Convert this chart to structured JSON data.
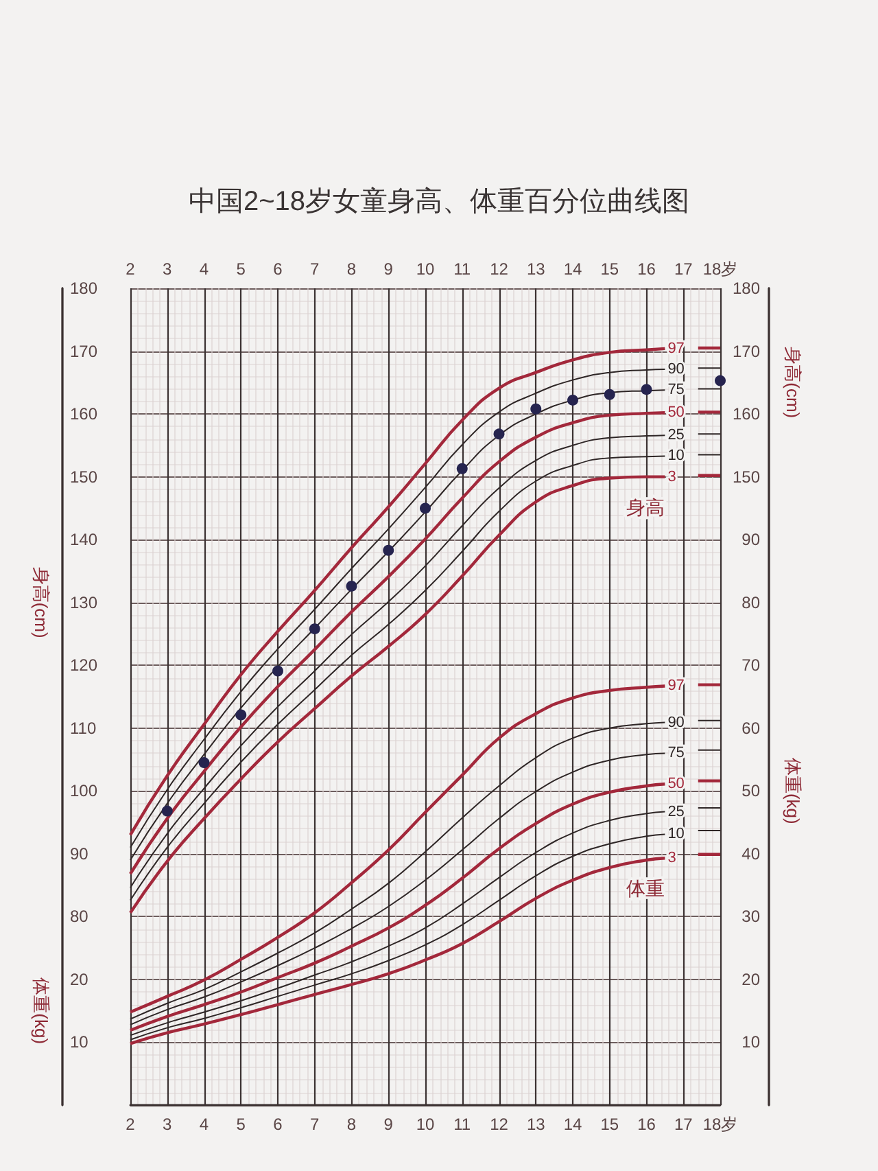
{
  "chart_data": [
    {
      "type": "line",
      "title": "中国2~18岁女童身高、体重百分位曲线图",
      "ylabel": "身高(cm)",
      "y2label": "身高(cm)",
      "xlim": [
        2,
        18
      ],
      "xticks": [
        2,
        3,
        4,
        5,
        6,
        7,
        8,
        9,
        10,
        11,
        12,
        13,
        14,
        15,
        16,
        17,
        {
          "value": 18,
          "label": "18岁"
        }
      ],
      "x2lim": [
        2,
        18
      ],
      "x2ticks": [
        2,
        3,
        4,
        5,
        6,
        7,
        8,
        9,
        10,
        11,
        12,
        13,
        14,
        15,
        16,
        17,
        {
          "value": 18,
          "label": "18岁"
        }
      ],
      "ylim": [
        50,
        180
      ],
      "yticks": [
        80,
        90,
        100,
        110,
        120,
        130,
        140,
        150,
        160,
        170,
        180
      ],
      "y2lim": [
        50,
        180
      ],
      "y2ticks": [
        150,
        160,
        170,
        180
      ],
      "grid": true,
      "series": [
        {
          "name": "97",
          "color": "#a3283b",
          "x": [
            2,
            3,
            4,
            5,
            6,
            7,
            8,
            9,
            10,
            11,
            12,
            13,
            14,
            15,
            16,
            16.5,
            17,
            17.4,
            18
          ],
          "values": [
            93.0,
            102.4,
            110.6,
            118.5,
            125.4,
            131.9,
            138.7,
            145.2,
            152.1,
            159.0,
            164.1,
            166.6,
            168.6,
            169.8,
            170.2,
            170.4,
            null,
            170.5,
            170.5
          ]
        },
        {
          "name": "90",
          "color": "#2e2626",
          "x": [
            2,
            3,
            4,
            5,
            6,
            7,
            8,
            9,
            10,
            11,
            12,
            13,
            14,
            15,
            16,
            16.5,
            17,
            17.4,
            18
          ],
          "values": [
            91.0,
            100.2,
            108.2,
            115.8,
            122.6,
            128.9,
            135.4,
            141.7,
            148.3,
            155.1,
            160.3,
            163.3,
            165.4,
            166.6,
            167.0,
            167.1,
            null,
            167.3,
            167.3
          ]
        },
        {
          "name": "75",
          "color": "#2e2626",
          "x": [
            2,
            3,
            4,
            5,
            6,
            7,
            8,
            9,
            10,
            11,
            12,
            13,
            14,
            15,
            16,
            16.5,
            17,
            17.4,
            18
          ],
          "values": [
            89.0,
            98.0,
            105.8,
            113.2,
            119.8,
            125.9,
            132.1,
            138.1,
            144.4,
            151.0,
            156.6,
            160.0,
            162.2,
            163.4,
            163.7,
            163.8,
            null,
            164.0,
            164.0
          ]
        },
        {
          "name": "50",
          "color": "#a3283b",
          "x": [
            2,
            3,
            4,
            5,
            6,
            7,
            8,
            9,
            10,
            11,
            12,
            13,
            14,
            15,
            16,
            16.5,
            17,
            17.4,
            18
          ],
          "values": [
            86.8,
            95.6,
            103.1,
            110.2,
            116.6,
            122.5,
            128.5,
            134.1,
            140.1,
            146.6,
            152.4,
            156.3,
            158.6,
            159.8,
            160.1,
            160.2,
            null,
            160.3,
            160.3
          ]
        },
        {
          "name": "25",
          "color": "#2e2626",
          "x": [
            2,
            3,
            4,
            5,
            6,
            7,
            8,
            9,
            10,
            11,
            12,
            13,
            14,
            15,
            16,
            16.5,
            17,
            17.4,
            18
          ],
          "values": [
            84.6,
            93.2,
            100.4,
            107.2,
            113.4,
            119.1,
            124.9,
            130.1,
            135.8,
            142.2,
            148.2,
            152.6,
            155.0,
            156.2,
            156.5,
            156.6,
            null,
            156.8,
            156.8
          ]
        },
        {
          "name": "10",
          "color": "#2e2626",
          "x": [
            2,
            3,
            4,
            5,
            6,
            7,
            8,
            9,
            10,
            11,
            12,
            13,
            14,
            15,
            16,
            16.5,
            17,
            17.4,
            18
          ],
          "values": [
            82.6,
            91.0,
            98.0,
            104.6,
            110.6,
            116.1,
            121.6,
            126.5,
            131.9,
            138.1,
            144.5,
            149.3,
            151.8,
            153.0,
            153.2,
            153.3,
            null,
            153.5,
            153.5
          ]
        },
        {
          "name": "3",
          "color": "#a3283b",
          "x": [
            2,
            3,
            4,
            5,
            6,
            7,
            8,
            9,
            10,
            11,
            12,
            13,
            14,
            15,
            16,
            16.5,
            17,
            17.4,
            18
          ],
          "values": [
            80.6,
            88.8,
            95.6,
            101.9,
            107.8,
            113.1,
            118.3,
            123.0,
            128.1,
            134.2,
            140.7,
            146.0,
            148.6,
            149.8,
            150.0,
            150.0,
            null,
            150.2,
            150.2
          ]
        },
        {
          "type": "scatter",
          "color": "#26244f",
          "marker": "circle",
          "x": [
            3,
            4,
            5,
            6,
            7,
            8,
            9,
            10,
            11,
            12,
            13,
            14,
            15,
            16,
            18
          ],
          "values": [
            96.8,
            104.5,
            112.1,
            119.1,
            125.8,
            132.6,
            138.3,
            145.0,
            151.3,
            156.8,
            160.8,
            162.2,
            163.1,
            163.9,
            165.3
          ]
        }
      ],
      "annotations": [
        "身高"
      ]
    },
    {
      "type": "line",
      "ylabel": "体重(kg)",
      "y2label": "体重(kg)",
      "tick_labels": "y",
      "xlim": [
        2,
        18
      ],
      "ylim": [
        0,
        130
      ],
      "yticks": [
        10,
        20
      ],
      "y2lim": [
        0,
        130
      ],
      "y2ticks": [
        10,
        20,
        30,
        40,
        50,
        60,
        70,
        80,
        90
      ],
      "series": [
        {
          "name": "97",
          "color": "#a3283b",
          "x": [
            2,
            3,
            4,
            5,
            6,
            7,
            8,
            9,
            10,
            11,
            12,
            13,
            14,
            15,
            16,
            16.5,
            17,
            17.4,
            18
          ],
          "values": [
            14.8,
            17.3,
            19.9,
            23.2,
            26.7,
            30.6,
            35.4,
            40.6,
            46.6,
            52.5,
            58.4,
            62.3,
            64.8,
            66.0,
            66.5,
            66.7,
            null,
            66.9,
            66.9
          ]
        },
        {
          "name": "90",
          "color": "#2e2626",
          "x": [
            2,
            3,
            4,
            5,
            6,
            7,
            8,
            9,
            10,
            11,
            12,
            13,
            14,
            15,
            16,
            16.5,
            17,
            17.4,
            18
          ],
          "values": [
            13.7,
            16.2,
            18.4,
            21.2,
            24.2,
            27.4,
            31.2,
            35.3,
            40.3,
            45.7,
            50.8,
            55.3,
            58.4,
            60.0,
            60.7,
            60.9,
            null,
            61.2,
            61.2
          ]
        },
        {
          "name": "75",
          "color": "#2e2626",
          "x": [
            2,
            3,
            4,
            5,
            6,
            7,
            8,
            9,
            10,
            11,
            12,
            13,
            14,
            15,
            16,
            16.5,
            17,
            17.4,
            18
          ],
          "values": [
            12.8,
            15.2,
            17.2,
            19.6,
            22.2,
            25.0,
            28.1,
            31.6,
            35.8,
            40.6,
            45.6,
            49.9,
            53.0,
            54.9,
            55.8,
            56.0,
            null,
            56.5,
            56.5
          ]
        },
        {
          "name": "50",
          "color": "#a3283b",
          "x": [
            2,
            3,
            4,
            5,
            6,
            7,
            8,
            9,
            10,
            11,
            12,
            13,
            14,
            15,
            16,
            16.5,
            17,
            17.4,
            18
          ],
          "values": [
            11.9,
            14.1,
            16.0,
            18.0,
            20.3,
            22.6,
            25.3,
            28.2,
            31.8,
            36.1,
            40.8,
            44.8,
            47.9,
            49.8,
            50.8,
            51.1,
            null,
            51.6,
            51.6
          ]
        },
        {
          "name": "25",
          "color": "#2e2626",
          "x": [
            2,
            3,
            4,
            5,
            6,
            7,
            8,
            9,
            10,
            11,
            12,
            13,
            14,
            15,
            16,
            16.5,
            17,
            17.4,
            18
          ],
          "values": [
            11.1,
            13.1,
            14.8,
            16.6,
            18.6,
            20.7,
            22.8,
            25.3,
            28.2,
            32.0,
            36.2,
            40.2,
            43.3,
            45.3,
            46.4,
            46.7,
            null,
            47.3,
            47.3
          ]
        },
        {
          "name": "10",
          "color": "#2e2626",
          "x": [
            2,
            3,
            4,
            5,
            6,
            7,
            8,
            9,
            10,
            11,
            12,
            13,
            14,
            15,
            16,
            16.5,
            17,
            17.4,
            18
          ],
          "values": [
            10.4,
            12.3,
            13.8,
            15.5,
            17.3,
            19.1,
            20.9,
            23.0,
            25.5,
            28.7,
            32.6,
            36.5,
            39.6,
            41.6,
            42.8,
            43.1,
            null,
            43.7,
            43.7
          ]
        },
        {
          "name": "3",
          "color": "#a3283b",
          "x": [
            2,
            3,
            4,
            5,
            6,
            7,
            8,
            9,
            10,
            11,
            12,
            13,
            14,
            15,
            16,
            16.5,
            17,
            17.4,
            18
          ],
          "values": [
            9.8,
            11.5,
            12.9,
            14.4,
            16.0,
            17.6,
            19.2,
            20.9,
            23.1,
            25.7,
            29.2,
            32.9,
            35.8,
            37.8,
            39.0,
            39.3,
            null,
            39.9,
            39.9
          ]
        }
      ],
      "annotations": [
        "体重"
      ]
    }
  ]
}
